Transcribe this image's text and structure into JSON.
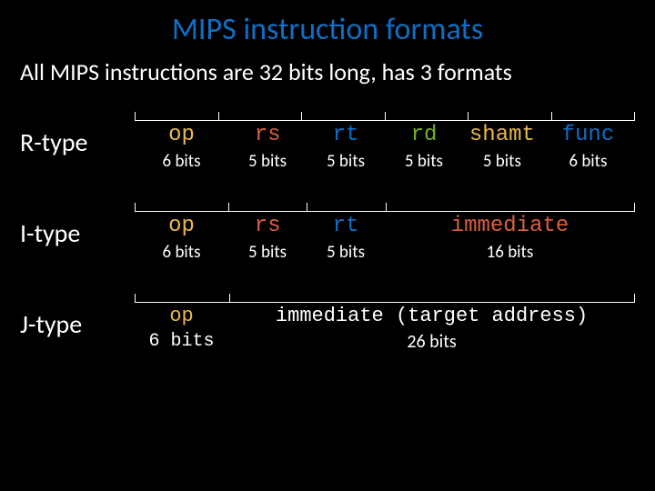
{
  "title": "MIPS instruction formats",
  "subtitle": "All MIPS instructions are 32 bits long, has 3 formats",
  "colors": {
    "background": "#000000",
    "text": "#ffffff",
    "title": "#0f6fc6",
    "op": "#e8b74b",
    "rs": "#d95f41",
    "rt": "#0f6fc6",
    "rd": "#72b028",
    "shamt": "#e8b74b",
    "func": "#0f6fc6",
    "immediate": "#d95f41"
  },
  "fontSizes": {
    "title": 34,
    "subtitle": 26,
    "typeLabel": 28,
    "field": 24,
    "bits": 19,
    "jField": 22,
    "jBits": 20
  },
  "diagramWidth": 540,
  "formats": [
    {
      "name": "R-type",
      "brackets": [
        1,
        1,
        1,
        1,
        1,
        1
      ],
      "fields": [
        {
          "label": "op",
          "colorKey": "op",
          "bits": "6 bits",
          "weight": 6
        },
        {
          "label": "rs",
          "colorKey": "rs",
          "bits": "5 bits",
          "weight": 5
        },
        {
          "label": "rt",
          "colorKey": "rt",
          "bits": "5 bits",
          "weight": 5
        },
        {
          "label": "rd",
          "colorKey": "rd",
          "bits": "5 bits",
          "weight": 5
        },
        {
          "label": "shamt",
          "colorKey": "shamt",
          "bits": "5 bits",
          "weight": 5
        },
        {
          "label": "func",
          "colorKey": "func",
          "bits": "6 bits",
          "weight": 6
        }
      ]
    },
    {
      "name": "I-type",
      "brackets": [
        6,
        5,
        5,
        16
      ],
      "fields": [
        {
          "label": "op",
          "colorKey": "op",
          "bits": "6 bits",
          "weight": 6
        },
        {
          "label": "rs",
          "colorKey": "rs",
          "bits": "5 bits",
          "weight": 5
        },
        {
          "label": "rt",
          "colorKey": "rt",
          "bits": "5 bits",
          "weight": 5
        },
        {
          "label": "immediate",
          "colorKey": "immediate",
          "bits": "16 bits",
          "weight": 16
        }
      ]
    },
    {
      "name": "J-type",
      "brackets": [
        6,
        26
      ],
      "fields": [
        {
          "label": "op",
          "colorKey": "op",
          "bits": "6 bits",
          "weight": 6,
          "bitsClass": "mono"
        },
        {
          "label": "immediate (target address)",
          "colorKey": "text",
          "bits": "26 bits",
          "weight": 26
        }
      ]
    }
  ]
}
